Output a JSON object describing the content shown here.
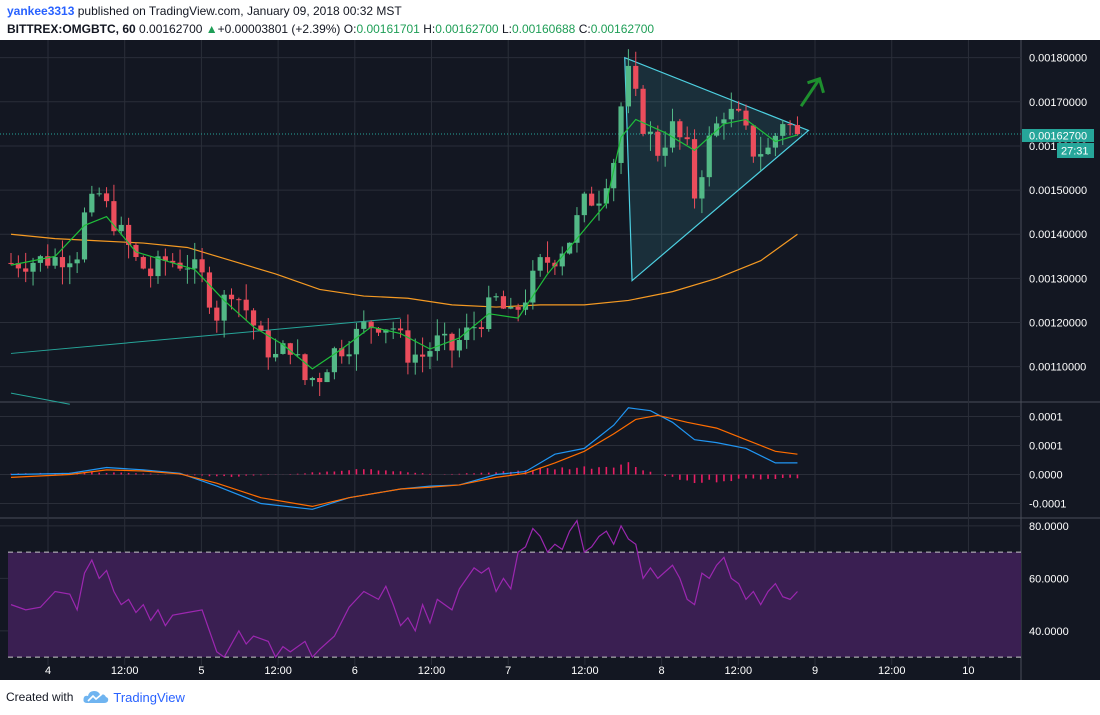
{
  "header": {
    "user": "yankee3313",
    "published_text": "published on TradingView.com, January 09, 2018 00:32 MST",
    "symbol": "BITTREX:OMGBTC, 60",
    "last": "0.00162700",
    "change": "+0.00003801 (+2.39%)",
    "o_label": "O:",
    "o_value": "0.00161701",
    "h_label": "H:",
    "h_value": "0.00162700",
    "l_label": "L:",
    "l_value": "0.00160688",
    "c_label": "C:",
    "c_value": "0.00162700"
  },
  "footer": {
    "created_with": "Created with",
    "brand": "TradingView"
  },
  "colors": {
    "background": "#131722",
    "grid": "#2a2e39",
    "candle_up": "#53b987",
    "candle_down": "#eb4d5c",
    "sma_fast": "#1fbf3a",
    "sma_slow": "#f59a23",
    "triangle": "#4dd0e1",
    "macd": "#2196f3",
    "signal": "#ff6d00",
    "histogram": "#e91e63",
    "rsi": "#9c27b0",
    "rsi_band": "#3a1f52",
    "arrow": "#1e8f2e",
    "price_tag": "#26a69a"
  },
  "price_tag": {
    "value": "0.00162700",
    "countdown": "27:31"
  },
  "chart_data": [
    {
      "type": "candlestick",
      "name": "BITTREX:OMGBTC, 60",
      "y_ticks": [
        "0.00180000",
        "0.00170000",
        "0.00160000",
        "0.00150000",
        "0.00140000",
        "0.00130000",
        "0.00120000",
        "0.00110000"
      ],
      "ylim": [
        0.00102,
        0.00184
      ],
      "x_ticks": [
        "4",
        "12:00",
        "5",
        "12:00",
        "6",
        "12:00",
        "7",
        "12:00",
        "8",
        "12:00",
        "9",
        "12:00",
        "10"
      ],
      "last_price": 0.001627,
      "close_path": [
        [
          0,
          0.001335
        ],
        [
          3,
          0.00134
        ],
        [
          6,
          0.001345
        ],
        [
          9,
          0.00136
        ],
        [
          10,
          0.00144
        ],
        [
          12,
          0.00149
        ],
        [
          14,
          0.00143
        ],
        [
          17,
          0.00134
        ],
        [
          19,
          0.00131
        ],
        [
          21,
          0.00134
        ],
        [
          24,
          0.001335
        ],
        [
          26,
          0.0013
        ],
        [
          28,
          0.00122
        ],
        [
          30,
          0.00128
        ],
        [
          32,
          0.00123
        ],
        [
          34,
          0.00116
        ],
        [
          36,
          0.00112
        ],
        [
          38,
          0.00115
        ],
        [
          40,
          0.00107
        ],
        [
          42,
          0.00108
        ],
        [
          44,
          0.001135
        ],
        [
          46,
          0.001155
        ],
        [
          48,
          0.00119
        ],
        [
          50,
          0.0012
        ],
        [
          52,
          0.00119
        ],
        [
          54,
          0.00113
        ],
        [
          56,
          0.001125
        ],
        [
          58,
          0.001155
        ],
        [
          60,
          0.00114
        ],
        [
          62,
          0.001175
        ],
        [
          64,
          0.00121
        ],
        [
          66,
          0.00125
        ],
        [
          68,
          0.00121
        ],
        [
          70,
          0.00126
        ],
        [
          72,
          0.00133
        ],
        [
          74,
          0.00135
        ],
        [
          76,
          0.00139
        ],
        [
          78,
          0.00147
        ],
        [
          80,
          0.00149
        ],
        [
          82,
          0.00157
        ],
        [
          83,
          0.00169
        ],
        [
          84,
          0.00176
        ],
        [
          86,
          0.00165
        ],
        [
          88,
          0.00159
        ],
        [
          90,
          0.00164
        ],
        [
          92,
          0.00159
        ],
        [
          93,
          0.00149
        ],
        [
          95,
          0.00161
        ],
        [
          97,
          0.00168
        ],
        [
          99,
          0.00166
        ],
        [
          101,
          0.00159
        ],
        [
          103,
          0.00159
        ],
        [
          105,
          0.00166
        ],
        [
          107,
          0.001627
        ]
      ],
      "sma_fast": [
        [
          0,
          0.00133
        ],
        [
          6,
          0.00135
        ],
        [
          10,
          0.00142
        ],
        [
          13,
          0.00144
        ],
        [
          17,
          0.00136
        ],
        [
          21,
          0.00134
        ],
        [
          25,
          0.00132
        ],
        [
          29,
          0.00125
        ],
        [
          33,
          0.00119
        ],
        [
          37,
          0.00115
        ],
        [
          41,
          0.001095
        ],
        [
          45,
          0.00114
        ],
        [
          49,
          0.00119
        ],
        [
          53,
          0.001175
        ],
        [
          57,
          0.00114
        ],
        [
          61,
          0.001165
        ],
        [
          65,
          0.00122
        ],
        [
          69,
          0.00121
        ],
        [
          73,
          0.00131
        ],
        [
          77,
          0.00139
        ],
        [
          81,
          0.00147
        ],
        [
          83,
          0.00162
        ],
        [
          85,
          0.00166
        ],
        [
          89,
          0.00163
        ],
        [
          93,
          0.00159
        ],
        [
          97,
          0.00165
        ],
        [
          100,
          0.00166
        ],
        [
          104,
          0.00161
        ],
        [
          107,
          0.001625
        ]
      ],
      "sma_slow": [
        [
          0,
          0.0014
        ],
        [
          6,
          0.00139
        ],
        [
          12,
          0.001385
        ],
        [
          18,
          0.00138
        ],
        [
          24,
          0.00137
        ],
        [
          30,
          0.00134
        ],
        [
          36,
          0.00131
        ],
        [
          42,
          0.001275
        ],
        [
          48,
          0.00126
        ],
        [
          54,
          0.001255
        ],
        [
          60,
          0.00124
        ],
        [
          66,
          0.001235
        ],
        [
          72,
          0.00124
        ],
        [
          78,
          0.00124
        ],
        [
          84,
          0.00125
        ],
        [
          90,
          0.00127
        ],
        [
          96,
          0.0013
        ],
        [
          102,
          0.00134
        ],
        [
          107,
          0.0014
        ]
      ],
      "trendlines": [
        {
          "points": [
            [
              0,
              0.00113
            ],
            [
              53,
              0.00121
            ]
          ],
          "color": "#26a69a"
        },
        {
          "points": [
            [
              0,
              0.00104
            ],
            [
              8,
              0.001015
            ]
          ],
          "color": "#26a69a"
        }
      ],
      "triangle": {
        "points": [
          [
            83.5,
            0.0018
          ],
          [
            108.5,
            0.001635
          ],
          [
            84.5,
            0.001295
          ]
        ]
      },
      "arrow": {
        "from": [
          107.5,
          0.00169
        ],
        "to": [
          110,
          0.001752
        ]
      }
    },
    {
      "type": "line",
      "name": "MACD",
      "y_ticks": [
        "0.0001",
        "0.0001",
        "0.0000",
        "-0.0001"
      ],
      "tick_values": [
        0.0001,
        5e-05,
        0.0,
        -5e-05
      ],
      "ylim": [
        -7.5e-05,
        0.000125
      ],
      "series": [
        {
          "key": "macd",
          "values": [
            [
              0,
              0.0
            ],
            [
              8,
              2e-06
            ],
            [
              13,
              1.2e-05
            ],
            [
              18,
              8e-06
            ],
            [
              23,
              2e-06
            ],
            [
              28,
              -2e-05
            ],
            [
              34,
              -5e-05
            ],
            [
              41,
              -6e-05
            ],
            [
              46,
              -4e-05
            ],
            [
              53,
              -2.5e-05
            ],
            [
              57,
              -2e-05
            ],
            [
              61,
              -1.8e-05
            ],
            [
              66,
              0.0
            ],
            [
              70,
              5e-06
            ],
            [
              74,
              3.5e-05
            ],
            [
              78,
              4.5e-05
            ],
            [
              82,
              8.5e-05
            ],
            [
              84,
              0.000115
            ],
            [
              87,
              0.00011
            ],
            [
              90,
              9e-05
            ],
            [
              93,
              6e-05
            ],
            [
              96,
              5.5e-05
            ],
            [
              100,
              4.5e-05
            ],
            [
              104,
              2e-05
            ],
            [
              107,
              2e-05
            ]
          ]
        },
        {
          "key": "signal",
          "values": [
            [
              0,
              -5e-06
            ],
            [
              8,
              0.0
            ],
            [
              13,
              8e-06
            ],
            [
              18,
              6e-06
            ],
            [
              23,
              1e-06
            ],
            [
              28,
              -1.5e-05
            ],
            [
              34,
              -4e-05
            ],
            [
              41,
              -5.5e-05
            ],
            [
              46,
              -4e-05
            ],
            [
              53,
              -2.5e-05
            ],
            [
              57,
              -2.2e-05
            ],
            [
              61,
              -1.8e-05
            ],
            [
              66,
              -5e-06
            ],
            [
              70,
              2e-06
            ],
            [
              74,
              2e-05
            ],
            [
              78,
              4e-05
            ],
            [
              82,
              7e-05
            ],
            [
              85,
              9.5e-05
            ],
            [
              88,
              0.000102
            ],
            [
              92,
              9e-05
            ],
            [
              96,
              8e-05
            ],
            [
              100,
              6e-05
            ],
            [
              104,
              4e-05
            ],
            [
              107,
              3.5e-05
            ]
          ]
        }
      ],
      "histogram_profile": [
        [
          0,
          2e-06
        ],
        [
          12,
          4e-06
        ],
        [
          22,
          0.0
        ],
        [
          30,
          -4e-06
        ],
        [
          40,
          2e-06
        ],
        [
          48,
          1.2e-05
        ],
        [
          53,
          5e-06
        ],
        [
          58,
          0.0
        ],
        [
          66,
          4e-06
        ],
        [
          72,
          1e-05
        ],
        [
          80,
          1.4e-05
        ],
        [
          84,
          2e-05
        ],
        [
          88,
          0.0
        ],
        [
          93,
          -1.4e-05
        ],
        [
          100,
          -8e-06
        ],
        [
          107,
          -6e-06
        ]
      ]
    },
    {
      "type": "line",
      "name": "RSI",
      "y_ticks": [
        "80.0000",
        "60.0000",
        "40.0000"
      ],
      "tick_values": [
        80,
        60,
        40
      ],
      "ylim": [
        27,
        83
      ],
      "bands": [
        30,
        70
      ],
      "values": [
        [
          0,
          50
        ],
        [
          2,
          48
        ],
        [
          4,
          49
        ],
        [
          6,
          55
        ],
        [
          8,
          54
        ],
        [
          9,
          48
        ],
        [
          10,
          62
        ],
        [
          11,
          67
        ],
        [
          12,
          60
        ],
        [
          13,
          63
        ],
        [
          14,
          55
        ],
        [
          15,
          50
        ],
        [
          16,
          52
        ],
        [
          17,
          47
        ],
        [
          18,
          50
        ],
        [
          19,
          44
        ],
        [
          20,
          48
        ],
        [
          21,
          42
        ],
        [
          22,
          46
        ],
        [
          24,
          47
        ],
        [
          26,
          48
        ],
        [
          27,
          40
        ],
        [
          28,
          32
        ],
        [
          29,
          30
        ],
        [
          31,
          40
        ],
        [
          32,
          35
        ],
        [
          33,
          38
        ],
        [
          35,
          36
        ],
        [
          36,
          30
        ],
        [
          37,
          34
        ],
        [
          38,
          32
        ],
        [
          40,
          36
        ],
        [
          41,
          30
        ],
        [
          42,
          33
        ],
        [
          44,
          38
        ],
        [
          46,
          49
        ],
        [
          48,
          55
        ],
        [
          50,
          52
        ],
        [
          51,
          57
        ],
        [
          52,
          50
        ],
        [
          53,
          42
        ],
        [
          54,
          45
        ],
        [
          55,
          40
        ],
        [
          56,
          50
        ],
        [
          57,
          43
        ],
        [
          58,
          52
        ],
        [
          60,
          48
        ],
        [
          61,
          56
        ],
        [
          62,
          60
        ],
        [
          63,
          64
        ],
        [
          64,
          62
        ],
        [
          65,
          64
        ],
        [
          66,
          55
        ],
        [
          67,
          60
        ],
        [
          68,
          56
        ],
        [
          69,
          70
        ],
        [
          70,
          72
        ],
        [
          71,
          79
        ],
        [
          72,
          76
        ],
        [
          73,
          70
        ],
        [
          74,
          73
        ],
        [
          75,
          71
        ],
        [
          76,
          78
        ],
        [
          77,
          82
        ],
        [
          78,
          70
        ],
        [
          79,
          72
        ],
        [
          80,
          76
        ],
        [
          81,
          78
        ],
        [
          82,
          73
        ],
        [
          83,
          80
        ],
        [
          84,
          75
        ],
        [
          85,
          73
        ],
        [
          86,
          60
        ],
        [
          87,
          64
        ],
        [
          88,
          60
        ],
        [
          90,
          65
        ],
        [
          91,
          60
        ],
        [
          92,
          52
        ],
        [
          93,
          50
        ],
        [
          94,
          62
        ],
        [
          95,
          60
        ],
        [
          96,
          65
        ],
        [
          97,
          68
        ],
        [
          98,
          60
        ],
        [
          99,
          58
        ],
        [
          100,
          52
        ],
        [
          101,
          55
        ],
        [
          102,
          50
        ],
        [
          103,
          55
        ],
        [
          104,
          58
        ],
        [
          105,
          53
        ],
        [
          106,
          52
        ],
        [
          107,
          55
        ]
      ]
    }
  ]
}
